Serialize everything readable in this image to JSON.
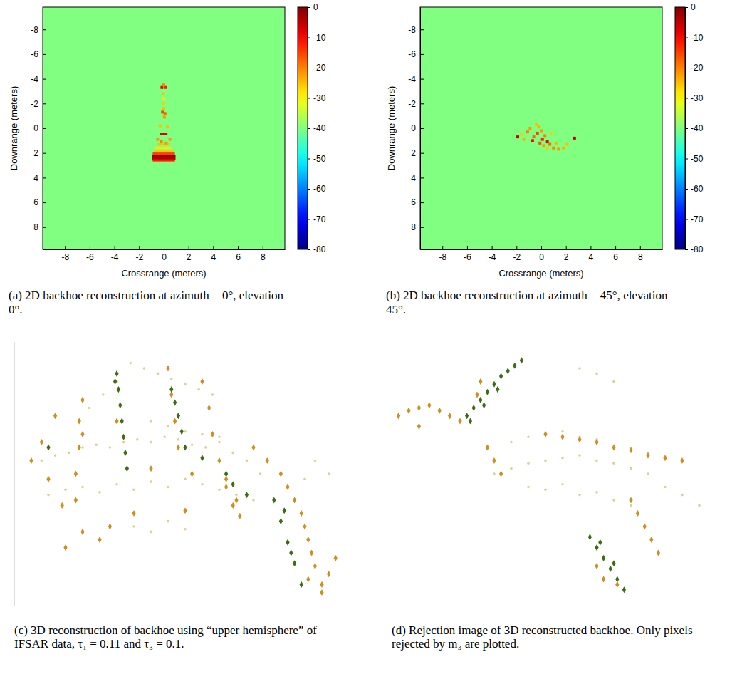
{
  "chart_data": [
    {
      "type": "heatmap",
      "title": "(a) 2D backhoe reconstruction at azimuth = 0°, elevation = 0°.",
      "xlabel": "Crossrange (meters)",
      "ylabel": "Downrange (meters)",
      "xlim": [
        -9.8,
        9.8
      ],
      "ylim": [
        9.8,
        -9.8
      ],
      "xticks": [
        -8,
        -6,
        -4,
        -2,
        0,
        2,
        4,
        6,
        8
      ],
      "yticks": [
        -8,
        -6,
        -4,
        -2,
        0,
        2,
        4,
        6,
        8
      ],
      "colorbar": {
        "range": [
          -80,
          0
        ],
        "ticks": [
          0,
          -10,
          -20,
          -30,
          -40,
          -50,
          -60,
          -70,
          -80
        ]
      },
      "background": -40,
      "points": {
        "x": [
          -0.15,
          0.15,
          0.0,
          -0.05,
          0.0,
          0.0,
          -0.1,
          0.1,
          0.0,
          0.05,
          -0.3,
          0.3,
          -0.5,
          0.5,
          -0.2,
          0.2
        ],
        "y": [
          -3.3,
          -3.3,
          -3.5,
          -2.8,
          -2.4,
          -2.0,
          -1.3,
          -1.2,
          -1.6,
          -0.9,
          -0.2,
          -0.1,
          0.9,
          0.9,
          1.1,
          1.2
        ],
        "values": [
          -8,
          -12,
          -20,
          -25,
          -28,
          -26,
          -15,
          -18,
          -25,
          -22,
          -25,
          -25,
          -22,
          -22,
          -20,
          -22
        ]
      },
      "segments": {
        "x0": [
          -0.3,
          -0.7,
          -0.8,
          -0.9,
          -0.95,
          -0.95,
          -0.9,
          -0.5
        ],
        "x1": [
          0.3,
          0.6,
          0.8,
          0.9,
          0.95,
          0.95,
          0.9,
          0.5
        ],
        "y": [
          0.45,
          1.6,
          1.9,
          2.05,
          2.25,
          2.45,
          2.6,
          1.3
        ],
        "values": [
          -8,
          -28,
          -25,
          -15,
          -2,
          -4,
          -12,
          -25
        ]
      }
    },
    {
      "type": "heatmap",
      "title": "(b) 2D backhoe reconstruction at azimuth = 45°, elevation = 45°.",
      "xlabel": "Crossrange (meters)",
      "ylabel": "Downrange (meters)",
      "xlim": [
        -9.8,
        9.8
      ],
      "ylim": [
        9.8,
        -9.8
      ],
      "xticks": [
        -8,
        -6,
        -4,
        -2,
        0,
        2,
        4,
        6,
        8
      ],
      "yticks": [
        -8,
        -6,
        -4,
        -2,
        0,
        2,
        4,
        6,
        8
      ],
      "colorbar": {
        "range": [
          -80,
          0
        ],
        "ticks": [
          0,
          -10,
          -20,
          -30,
          -40,
          -50,
          -60,
          -70,
          -80
        ]
      },
      "background": -40,
      "points": {
        "x": [
          -1.9,
          2.7,
          -0.7,
          0.5,
          -0.3,
          0.1,
          -1.1,
          -0.9,
          -0.4,
          0.0,
          0.3,
          0.7,
          1.0,
          1.4,
          1.8,
          2.1,
          -1.4,
          -0.6,
          0.2,
          -0.2,
          0.8,
          -1.6,
          1.2,
          0.5,
          -0.1
        ],
        "y": [
          0.7,
          0.8,
          1.0,
          1.1,
          0.4,
          0.9,
          0.3,
          0.0,
          -0.3,
          0.2,
          0.6,
          1.3,
          1.6,
          1.7,
          1.6,
          1.3,
          0.9,
          0.7,
          1.4,
          -0.1,
          0.4,
          0.5,
          1.2,
          1.6,
          1.2
        ],
        "values": [
          -5,
          -5,
          -10,
          -8,
          -15,
          -12,
          -20,
          -22,
          -25,
          -22,
          -20,
          -18,
          -20,
          -22,
          -24,
          -25,
          -24,
          -18,
          -22,
          -24,
          -26,
          -26,
          -24,
          -26,
          -16
        ]
      }
    },
    {
      "type": "scatter",
      "title": "(c) 3D reconstruction of backhoe using “upper hemisphere” of IFSAR data, τ₁ = 0.11 and τ₃ = 0.1.",
      "tick_labels": false,
      "xlim": [
        0,
        100
      ],
      "ylim": [
        0,
        100
      ],
      "series": [
        {
          "color": "#e0cf95",
          "marker": "dot",
          "x": [
            8,
            12,
            16,
            20,
            24,
            28,
            32,
            36,
            40,
            44,
            48,
            52,
            56,
            60,
            64,
            68,
            72,
            10,
            15,
            20,
            25,
            30,
            35,
            40,
            45,
            50,
            55,
            60,
            65,
            70,
            22,
            26,
            30,
            34,
            38,
            42,
            46,
            50,
            54,
            58,
            40,
            45,
            50,
            55,
            60,
            35,
            40,
            45,
            50,
            88,
            92,
            85
          ],
          "y": [
            55,
            57,
            58,
            60,
            61,
            60,
            62,
            63,
            62,
            64,
            63,
            61,
            60,
            62,
            58,
            55,
            50,
            42,
            44,
            45,
            43,
            46,
            44,
            47,
            45,
            48,
            46,
            44,
            42,
            40,
            75,
            80,
            85,
            92,
            90,
            88,
            86,
            84,
            82,
            80,
            70,
            68,
            66,
            65,
            64,
            30,
            28,
            32,
            29,
            55,
            50,
            48
          ]
        },
        {
          "color": "#cf8f1f",
          "marker": "diamond",
          "x": [
            18,
            18,
            19,
            19,
            20,
            20,
            12,
            8,
            5,
            10,
            14,
            28,
            40,
            52,
            62,
            70,
            74,
            78,
            80,
            82,
            84,
            85,
            86,
            87,
            88,
            86,
            90,
            92,
            94,
            90,
            45,
            46,
            47,
            48,
            55,
            57,
            58,
            60,
            62,
            64,
            66,
            30,
            20,
            25,
            15,
            35,
            50,
            65
          ],
          "y": [
            40,
            50,
            60,
            70,
            78,
            65,
            72,
            62,
            55,
            48,
            38,
            30,
            52,
            50,
            48,
            60,
            55,
            50,
            45,
            40,
            35,
            30,
            25,
            20,
            15,
            10,
            8,
            12,
            18,
            5,
            90,
            80,
            70,
            60,
            85,
            75,
            65,
            55,
            45,
            38,
            34,
            70,
            28,
            25,
            22,
            35,
            36,
            40
          ]
        },
        {
          "color": "#3f6b14",
          "marker": "diamond",
          "x": [
            30,
            30.5,
            31,
            31.5,
            32,
            32.5,
            33,
            29.5,
            46,
            47,
            48,
            49,
            50,
            76,
            78,
            80,
            82,
            84,
            79,
            81,
            62,
            64,
            10,
            55,
            68
          ],
          "y": [
            88,
            82,
            76,
            70,
            64,
            58,
            52,
            85,
            82,
            77,
            72,
            66,
            60,
            40,
            32,
            24,
            16,
            8,
            36,
            20,
            50,
            46,
            60,
            56,
            42
          ]
        }
      ]
    },
    {
      "type": "scatter",
      "title": "(d) Rejection image of 3D reconstructed backhoe. Only pixels rejected by m₃ are plotted.",
      "tick_labels": false,
      "xlim": [
        0,
        100
      ],
      "ylim": [
        0,
        100
      ],
      "series": [
        {
          "color": "#e0cf95",
          "marker": "dot",
          "x": [
            30,
            35,
            40,
            45,
            50,
            55,
            60,
            65,
            70,
            75,
            40,
            45,
            50,
            55,
            60,
            65,
            70,
            35,
            40,
            45,
            50,
            55,
            60,
            65,
            80,
            85,
            90,
            55,
            60,
            65
          ],
          "y": [
            50,
            52,
            54,
            55,
            56,
            57,
            55,
            54,
            52,
            50,
            45,
            44,
            46,
            42,
            43,
            40,
            38,
            62,
            64,
            65,
            66,
            64,
            63,
            60,
            45,
            42,
            38,
            90,
            88,
            85
          ]
        },
        {
          "color": "#cf8f1f",
          "marker": "diamond",
          "x": [
            2,
            5,
            8,
            11,
            14,
            17,
            20,
            45,
            50,
            55,
            60,
            65,
            70,
            75,
            80,
            85,
            28,
            30,
            32,
            70,
            72,
            74,
            76,
            78,
            25,
            26,
            60,
            62,
            66,
            8
          ],
          "y": [
            72,
            74,
            75,
            76,
            74,
            72,
            70,
            65,
            64,
            63,
            62,
            60,
            59,
            57,
            56,
            55,
            60,
            55,
            50,
            40,
            35,
            30,
            25,
            20,
            80,
            85,
            15,
            10,
            8,
            68
          ]
        },
        {
          "color": "#3f6b14",
          "marker": "diamond",
          "x": [
            22,
            24,
            26,
            28,
            30,
            32,
            34,
            36,
            38,
            23,
            27,
            31,
            58,
            60,
            62,
            64,
            66,
            68,
            61,
            65
          ],
          "y": [
            72,
            75,
            78,
            81,
            84,
            87,
            89,
            91,
            93,
            70,
            76,
            82,
            26,
            22,
            18,
            14,
            10,
            6,
            24,
            16
          ]
        }
      ]
    }
  ]
}
